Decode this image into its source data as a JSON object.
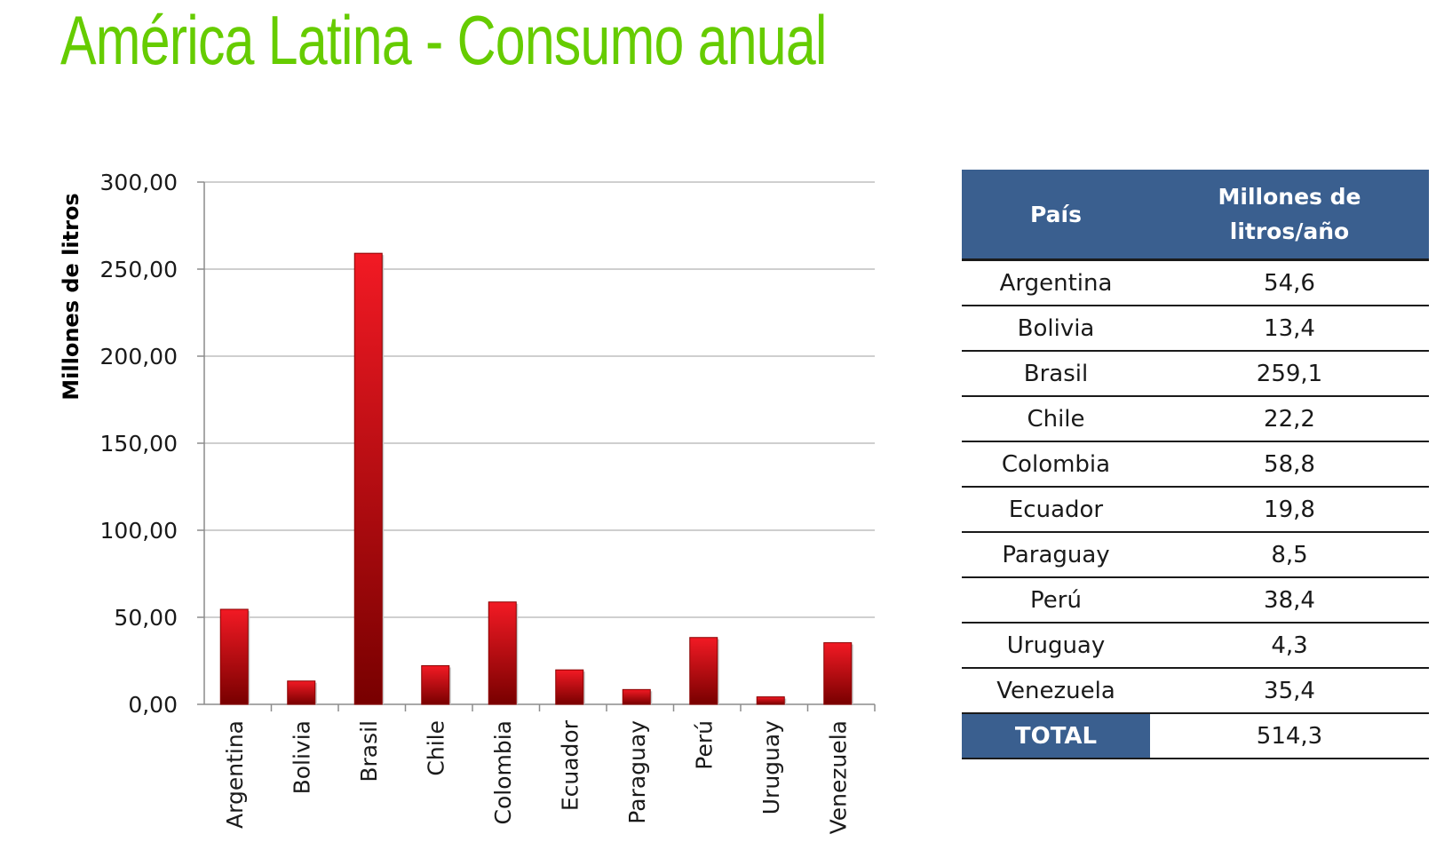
{
  "title": "América Latina - Consumo anual",
  "table": {
    "headers": [
      "País",
      "Millones de litros/año"
    ],
    "rows": [
      {
        "country": "Argentina",
        "value": "54,6"
      },
      {
        "country": "Bolivia",
        "value": "13,4"
      },
      {
        "country": "Brasil",
        "value": "259,1"
      },
      {
        "country": "Chile",
        "value": "22,2"
      },
      {
        "country": "Colombia",
        "value": "58,8"
      },
      {
        "country": "Ecuador",
        "value": "19,8"
      },
      {
        "country": "Paraguay",
        "value": "8,5"
      },
      {
        "country": "Perú",
        "value": "38,4"
      },
      {
        "country": "Uruguay",
        "value": "4,3"
      },
      {
        "country": "Venezuela",
        "value": "35,4"
      }
    ],
    "total_label": "TOTAL",
    "total_value": "514,3"
  },
  "chart_data": {
    "type": "bar",
    "ylabel": "Millones de litros",
    "xlabel": "",
    "ylim": [
      0,
      300
    ],
    "yticks": [
      "0,00",
      "50,00",
      "100,00",
      "150,00",
      "200,00",
      "250,00",
      "300,00"
    ],
    "grid": true,
    "bar_color": "#cc0000",
    "categories": [
      "Argentina",
      "Bolivia",
      "Brasil",
      "Chile",
      "Colombia",
      "Ecuador",
      "Paraguay",
      "Perú",
      "Uruguay",
      "Venezuela"
    ],
    "values": [
      54.6,
      13.4,
      259.1,
      22.2,
      58.8,
      19.8,
      8.5,
      38.4,
      4.3,
      35.4
    ]
  }
}
